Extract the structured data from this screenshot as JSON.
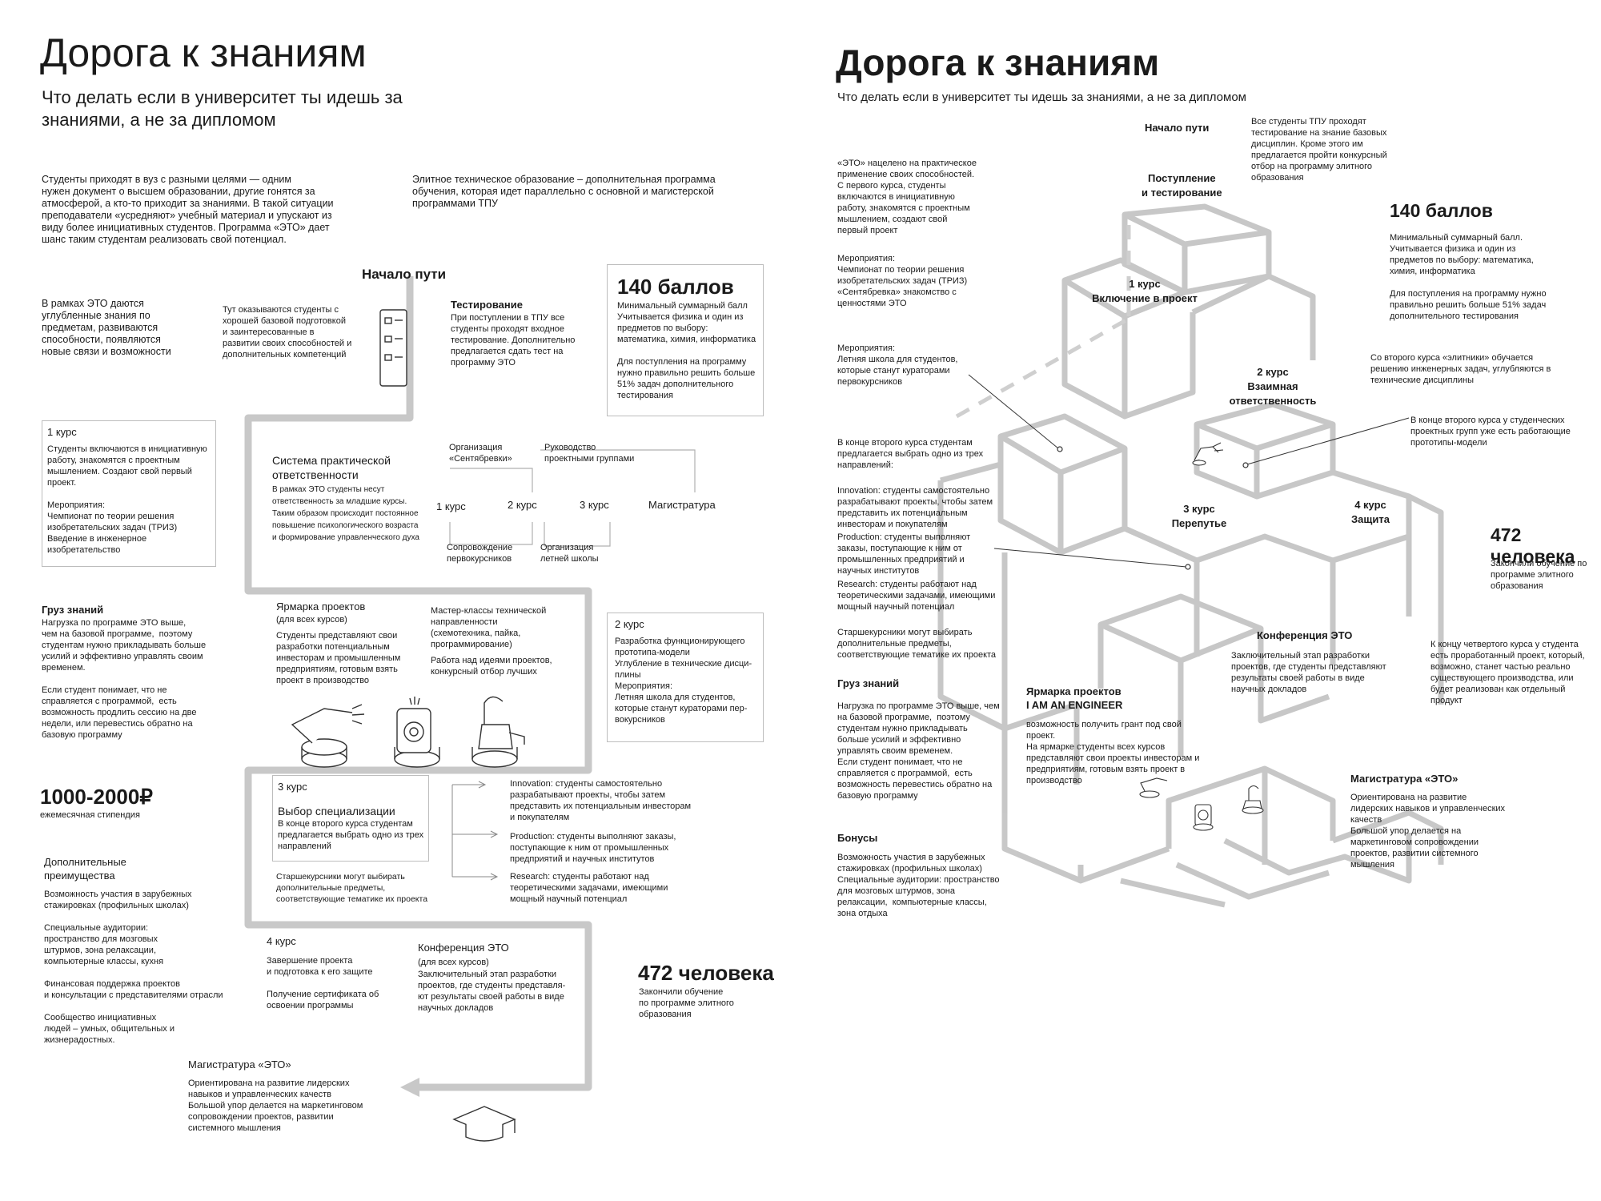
{
  "left": {
    "title": "Дорога к знаниям",
    "subtitle_lines": [
      "Что делать если в университет ты идешь за",
      "знаниями, а не за дипломом"
    ],
    "intro_left": [
      "Студенты приходят в вуз с разными целями — одним",
      "нужен документ о высшем образовании, другие гонятся за",
      "атмосферой, а кто-то приходит за знаниями. В такой ситуации",
      "преподаватели «усредняют» учебный материал и упускают из",
      "виду более инициативных студентов. Программа «ЭТО» дает",
      "шанс таким студентам реализовать свой потенциал."
    ],
    "intro_right": [
      "Элитное техническое образование – дополнительная программа",
      "обучения, которая идет параллельно с основной и магистерской",
      "программами ТПУ"
    ],
    "start_title": "Начало пути",
    "deep_text": [
      "В рамках ЭТО даются",
      "углубленные знания по",
      "предметам, развиваются",
      "способности, появляются",
      "новые связи и возможности"
    ],
    "students_text": [
      "Тут оказываются студенты с",
      "хорошей базовой подготовкой",
      "и заинтересованные в",
      "развитии своих способностей и",
      "дополнительных компетенций"
    ],
    "testing_title": "Тестирование",
    "testing_text": [
      "При поступлении в ТПУ все",
      "студенты проходят входное",
      "тестирование. Дополнительно",
      "предлагается сдать тест на",
      "программу ЭТО"
    ],
    "score_title": "140 баллов",
    "score_text": [
      "Минимальный суммарный балл",
      "Учитывается физика и один из",
      "предметов по выбору:",
      "математика, химия, информатика",
      "",
      "Для поступления на программу",
      "нужно правильно решить больше",
      "51% задач дополнительного",
      "тестирования"
    ],
    "course1_title": "1 курс",
    "course1_text": [
      "Студенты включаются в инициативную",
      "работу, знакомятся с проектным",
      "мышлением. Создают свой первый",
      "проект.",
      "",
      "Мероприятия:",
      "Чемпионат по теории решения",
      "изобретательских задач (ТРИЗ)",
      "Введение в инженерное",
      "изобретательство"
    ],
    "system_title": [
      "Система практической",
      "ответственности"
    ],
    "system_text": [
      "В рамках ЭТО студенты несут",
      "ответственность за младшие курсы.",
      "Таким образом происходит постоянное",
      "повышение психологического возраста",
      "и формирование управленческого духа"
    ],
    "org_sept": [
      "Организация",
      "«Сентябревки»"
    ],
    "lead_groups": [
      "Руководство",
      "проектными группами"
    ],
    "c1": "1 курс",
    "c2": "2 курс",
    "c3": "3 курс",
    "mag": "Магистратура",
    "escort": [
      "Сопровождение",
      "первокурсников"
    ],
    "summer_org": [
      "Организация",
      "летней школы"
    ],
    "load_title": "Груз знаний",
    "load_text": [
      "Нагрузка по программе ЭТО выше,",
      "чем на базовой программе,  поэтому",
      "студентам нужно прикладывать больше",
      "усилий и эффективно управлять своим",
      "временем.",
      "",
      "Если студент понимает, что не",
      "справляется с программой,  есть",
      "возможность продлить сессию на две",
      "недели, или перевестись обратно на",
      "базовую программу"
    ],
    "fair_title": "Ярмарка проектов",
    "fair_sub": "(для всех курсов)",
    "fair_text": [
      "Студенты представляют свои",
      "разработки потенциальным",
      "инвесторам и промышленным",
      "предприятиям, готовым взять",
      "проект в производство"
    ],
    "master_title": [
      "Мастер-классы технической",
      "направленности",
      "(схемотехника, пайка,",
      "программирование)"
    ],
    "master_text": [
      "Работа над идеями проектов,",
      "конкурсный отбор лучших"
    ],
    "course2_title": "2 курс",
    "course2_text": [
      "Разработка функционирующего",
      "прототипа-модели",
      "Углубление в технические дисци-",
      "плины",
      "Мероприятия:",
      "Летняя школа для студентов,",
      "которые станут кураторами пер-",
      "вокурсников"
    ],
    "stipend": "1000-2000₽",
    "stipend_text": "ежемесячная стипендия",
    "course3_title": "3 курс",
    "spec_title": "Выбор специализации",
    "spec_text": [
      "В конце второго курса студентам",
      "предлагается выбрать одно из трех",
      "направлений"
    ],
    "senior_text": [
      "Старшекурсники могут выбирать",
      "дополнительные предметы,",
      "соответствующие тематике их проекта"
    ],
    "innovation": [
      "Innovation: студенты самостоятельно",
      "разрабатывают проекты, чтобы затем",
      "представить их потенциальным инвесторам",
      "и покупателям"
    ],
    "production": [
      "Production: студенты выполняют заказы,",
      "поступающие к ним от промышленных",
      "предприятий и научных институтов"
    ],
    "research": [
      "Research: студенты работают над",
      "теоретическими задачами, имеющими",
      "мощный научный потенциал"
    ],
    "adv_title": [
      "Дополнительные",
      "преимущества"
    ],
    "adv_text": [
      "Возможность участия в зарубежных",
      "стажировках (профильных школах)",
      "",
      "Специальные аудитории:",
      "пространство для мозговых",
      "штурмов, зона релаксации,",
      "компьютерные классы, кухня",
      "",
      "Финансовая поддержка проектов",
      "и консультации с представителями отрасли",
      "",
      "Сообщество инициативных",
      "людей – умных, общительных и",
      "жизнерадостных."
    ],
    "course4_title": "4 курс",
    "course4_text": [
      "Завершение проекта",
      "и подготовка к его защите",
      "",
      "Получение сертификата об",
      "освоении программы"
    ],
    "conf_title": "Конференция ЭТО",
    "conf_sub": "(для всех курсов)",
    "conf_text": [
      "Заключительный этап разработки",
      "проектов, где студенты представля-",
      "ют результаты своей работы в виде",
      "научных докладов"
    ],
    "grads_title": "472 человека",
    "grads_text": [
      "Закончили обучение",
      "по программе элитного",
      "образования"
    ],
    "magistr_title": "Магистратура «ЭТО»",
    "magistr_text": [
      "Ориентирована на развитие лидерских",
      "навыков и управленческих качеств",
      "Большой упор делается на маркетинговом",
      "сопровождении проектов, развитии",
      "системного мышления"
    ]
  },
  "right": {
    "title": "Дорога к знаниям",
    "subtitle": "Что делать если в университет ты идешь за знаниями, а не за дипломом",
    "start": "Начало пути",
    "all_students": [
      "Все студенты ТПУ проходят",
      "тестирование на знание базовых",
      "дисциплин. Кроме этого им",
      "предлагается пройти конкурсный",
      "отбор на программу элитного",
      "образования"
    ],
    "admission": [
      "Поступление",
      "и тестирование"
    ],
    "eto_text": [
      "«ЭТО» нацелено на практическое",
      "применение своих способностей.",
      "С первого курса, студенты",
      "включаются в инициативную",
      "работу, знакомятся с проектным",
      "мышлением, создают свой",
      "первый проект"
    ],
    "events1": [
      "Мероприятия:",
      "Чемпионат по теории решения",
      "изобретательских задач (ТРИЗ)",
      "«Сентябревка» знакомство с",
      "ценностями ЭТО"
    ],
    "events2": [
      "Мероприятия:",
      "Летняя школа для студентов,",
      "которые станут кураторами",
      "первокурсников"
    ],
    "score_title": "140 баллов",
    "score_text": [
      "Минимальный суммарный балл.",
      "Учитывается физика и один из",
      "предметов по выбору: математика,",
      "химия, информатика",
      "",
      "Для поступления на программу нужно",
      "правильно решить больше 51% задач",
      "дополнительного тестирования"
    ],
    "elite_text": [
      "Со второго курса «элитники» обучается",
      "решению инженерных задач, углубляются в",
      "технические дисциплины"
    ],
    "course1": [
      "1 курс",
      "Включение в проект"
    ],
    "course2": [
      "2 курс",
      "Взаимная",
      "ответственность"
    ],
    "proto_text": [
      "В конце второго курса у студенческих",
      "проектных групп уже есть работающие",
      "прототипы-модели"
    ],
    "choose_text": [
      "В конце второго курса студентам",
      "предлагается выбрать одно из трех",
      "направлений:"
    ],
    "course3": [
      "3 курс",
      "Перепутье"
    ],
    "course4": [
      "4 курс",
      "Защита"
    ],
    "grads_title": "472 человека",
    "grads_text": [
      "Закончили обучение по",
      "программе элитного",
      "образования"
    ],
    "innovation": [
      "Innovation: студенты самостоятельно",
      "разрабатывают проекты, чтобы затем",
      "представить их потенциальным",
      "инвесторам и покупателям"
    ],
    "production": [
      "Production: студенты выполняют",
      "заказы, поступающие к ним от",
      "промышленных предприятий и",
      "научных институтов"
    ],
    "research": [
      "Research: студенты работают над",
      "теоретическими задачами, имеющими",
      "мощный научный потенциал"
    ],
    "senior": [
      "Старшекурсники могут выбирать",
      "дополнительные предметы,",
      "соответствующие тематике их проекта"
    ],
    "conf_title": "Конференция ЭТО",
    "conf_text": [
      "Заключительный этап разработки",
      "проектов, где студенты представляют",
      "результаты своей работы в виде",
      "научных докладов"
    ],
    "end4_text": [
      "К концу четвертого курса у студента",
      "есть проработанный проект, который,",
      "возможно, станет частью реально",
      "существующего производства, или",
      "будет реализован как отдельный",
      "продукт"
    ],
    "load_title": "Груз знаний",
    "load_text": [
      "Нагрузка по программе ЭТО выше, чем",
      "на базовой программе,  поэтому",
      "студентам нужно прикладывать",
      "больше усилий и эффективно",
      "управлять своим временем.",
      "Если студент понимает, что не",
      "справляется с программой,  есть",
      "возможность перевестись обратно на",
      "базовую программу"
    ],
    "fair_title": [
      "Ярмарка проектов",
      "I AM AN ENGINEER"
    ],
    "fair_text": [
      "возможность получить грант под свой",
      "проект.",
      "На ярмарке студенты всех курсов",
      "представляют свои проекты инвесторам и",
      "предприятиям, готовым взять проект в",
      "производство"
    ],
    "magistr_title": "Магистратура «ЭТО»",
    "magistr_text": [
      "Ориентирована на развитие",
      "лидерских навыков и управленческих",
      "качеств",
      "Большой упор делается на",
      "маркетинговом сопровождении",
      "проектов, развитии системного",
      "мышления"
    ],
    "bonus_title": "Бонусы",
    "bonus_text": [
      "Возможность участия в зарубежных",
      "стажировках (профильных школах)",
      "Специальные аудитории: пространство",
      "для мозговых штурмов, зона",
      "релаксации,  компьютерные классы,",
      "зона отдыха"
    ]
  }
}
